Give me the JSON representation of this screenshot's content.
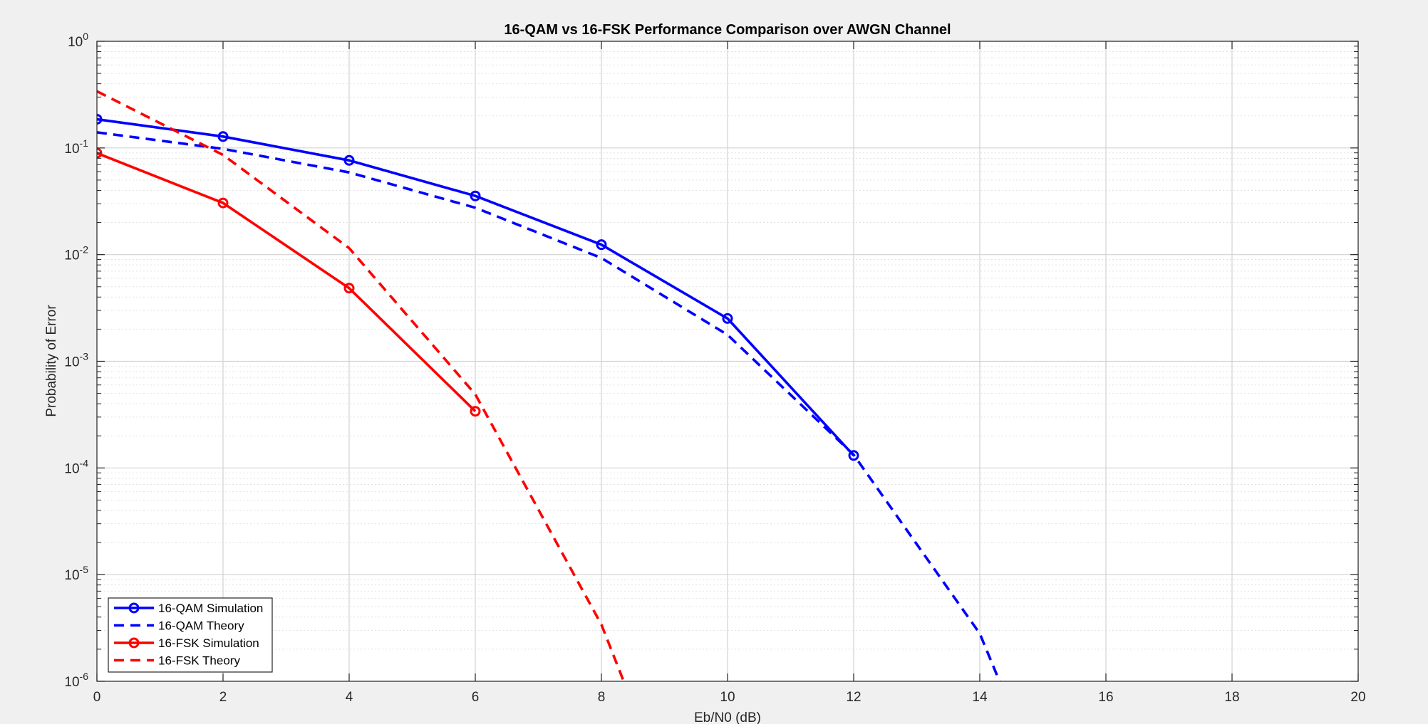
{
  "chart_data": {
    "type": "line",
    "title": "16-QAM vs 16-FSK Performance Comparison over AWGN Channel",
    "xlabel": "Eb/N0 (dB)",
    "ylabel": "Probability of Error",
    "xlim": [
      0,
      20
    ],
    "ylim": [
      1e-06,
      1
    ],
    "yscale": "log",
    "grid": true,
    "minor_grid": true,
    "legend_position": "bottom-left",
    "x_ticks": [
      0,
      2,
      4,
      6,
      8,
      10,
      12,
      14,
      16,
      18,
      20
    ],
    "x_tick_labels": [
      "0",
      "2",
      "4",
      "6",
      "8",
      "10",
      "12",
      "14",
      "16",
      "18",
      "20"
    ],
    "y_ticks": [
      {
        "base": "10",
        "exp": "0",
        "value": 1
      },
      {
        "base": "10",
        "exp": "-1",
        "value": 0.1
      },
      {
        "base": "10",
        "exp": "-2",
        "value": 0.01
      },
      {
        "base": "10",
        "exp": "-3",
        "value": 0.001
      },
      {
        "base": "10",
        "exp": "-4",
        "value": 0.0001
      },
      {
        "base": "10",
        "exp": "-5",
        "value": 1e-05
      },
      {
        "base": "10",
        "exp": "-6",
        "value": 1e-06
      }
    ],
    "series": [
      {
        "name": "16-QAM Simulation",
        "color": "#0000ff",
        "style": "solid",
        "marker": "circle",
        "x": [
          0,
          2,
          4,
          6,
          8,
          10,
          12
        ],
        "y": [
          0.186,
          0.128,
          0.0765,
          0.0355,
          0.0124,
          0.00252,
          0.000131
        ]
      },
      {
        "name": "16-QAM Theory",
        "color": "#0000ff",
        "style": "dashed",
        "marker": "none",
        "x": [
          0,
          2,
          4,
          6,
          8,
          10,
          12,
          14,
          14.4
        ],
        "y": [
          0.14,
          0.098,
          0.059,
          0.0275,
          0.0093,
          0.00177,
          0.000133,
          2.8e-06,
          7.5e-07
        ]
      },
      {
        "name": "16-FSK Simulation",
        "color": "#ff0000",
        "style": "solid",
        "marker": "circle",
        "x": [
          0,
          2,
          4,
          6
        ],
        "y": [
          0.0895,
          0.0305,
          0.00485,
          0.00034
        ]
      },
      {
        "name": "16-FSK Theory",
        "color": "#ff0000",
        "style": "dashed",
        "marker": "none",
        "x": [
          0,
          2,
          4,
          6,
          8,
          8.5
        ],
        "y": [
          0.34,
          0.086,
          0.0115,
          0.00049,
          3.4e-06,
          6e-07
        ]
      }
    ]
  }
}
